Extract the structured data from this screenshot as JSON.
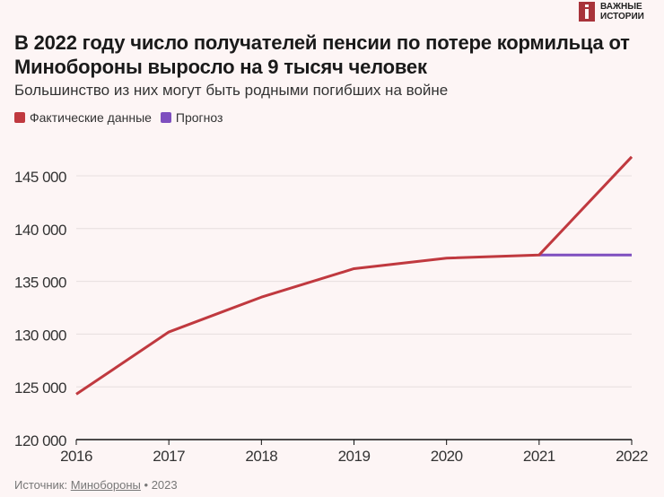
{
  "logo": {
    "line1": "ВАЖНЫЕ",
    "line2": "ИСТОРИИ"
  },
  "title": "В 2022 году число получателей пенсии по потере кормильца от Минобороны выросло на 9 тысяч человек",
  "subtitle": "Большинство из них могут быть родными погибших на войне",
  "source": {
    "label": "Источник:",
    "link": "Минобороны",
    "year": "• 2023"
  },
  "chart_data": {
    "type": "line",
    "x": [
      2016,
      2017,
      2018,
      2019,
      2020,
      2021,
      2022
    ],
    "series": [
      {
        "name": "Фактические данные",
        "color": "#c0393f",
        "x": [
          2016,
          2017,
          2018,
          2019,
          2020,
          2021,
          2022
        ],
        "values": [
          124300,
          130200,
          133500,
          136200,
          137200,
          137500,
          146800
        ]
      },
      {
        "name": "Прогноз",
        "color": "#7e4fbf",
        "x": [
          2021,
          2022
        ],
        "values": [
          137500,
          137500
        ]
      }
    ],
    "ylim": [
      120000,
      147000
    ],
    "yticks": [
      120000,
      125000,
      130000,
      135000,
      140000,
      145000
    ],
    "ytick_labels": [
      "120 000",
      "125 000",
      "130 000",
      "135 000",
      "140 000",
      "145 000"
    ],
    "xtick_labels": [
      "2016",
      "2017",
      "2018",
      "2019",
      "2020",
      "2021",
      "2022"
    ],
    "grid": true,
    "legend": "top-left"
  }
}
